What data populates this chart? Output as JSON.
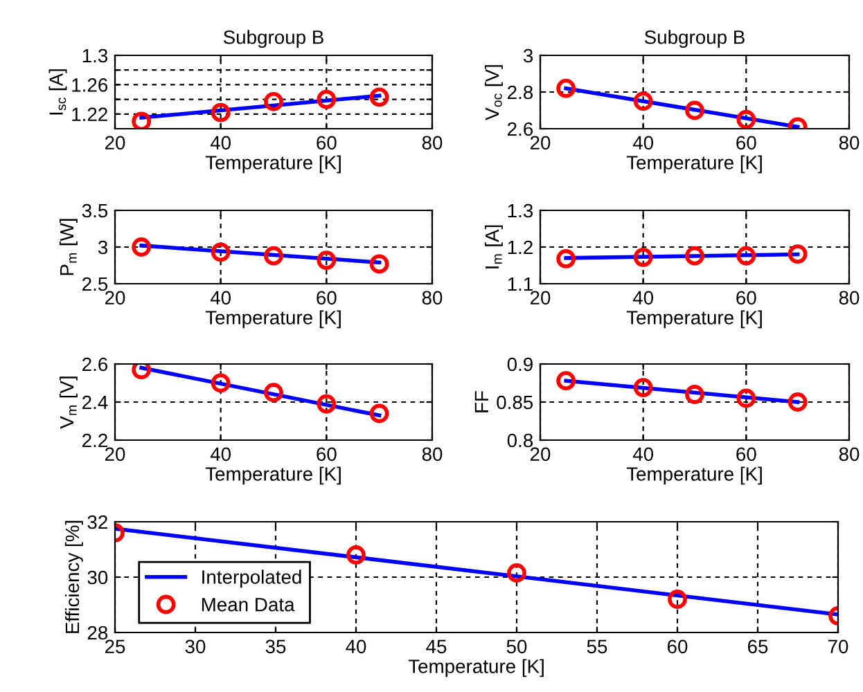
{
  "chart_data": [
    {
      "type": "line",
      "title": "Subgroup B",
      "xlabel": "Temperature [K]",
      "ylabel": "I$_{sc}$ [A]",
      "xlim": [
        20,
        80
      ],
      "xticks": [
        20,
        40,
        60,
        80
      ],
      "ylim": [
        1.2,
        1.3
      ],
      "yticks": [
        1.22,
        {
          "value": 1.24,
          "label": null
        },
        1.26,
        {
          "value": 1.28,
          "label": null
        },
        1.3
      ],
      "grid": true,
      "legend": false,
      "series": [
        {
          "color": "#0000ff",
          "x": [
            25,
            70
          ],
          "values": [
            1.215,
            1.245
          ],
          "marker": "none"
        },
        {
          "type": "scatter",
          "color": "#ff0000",
          "x": [
            25,
            40,
            50,
            60,
            70
          ],
          "values": [
            1.21,
            1.222,
            1.237,
            1.24,
            1.243
          ],
          "marker": "circle"
        }
      ]
    },
    {
      "type": "line",
      "title": "Subgroup B",
      "xlabel": "Temperature [K]",
      "ylabel": "V$_{oc}$ [V]",
      "xlim": [
        20,
        80
      ],
      "xticks": [
        20,
        40,
        60,
        80
      ],
      "ylim": [
        2.6,
        3
      ],
      "yticks": [
        2.6,
        2.8,
        3
      ],
      "grid": true,
      "legend": false,
      "series": [
        {
          "color": "#0000ff",
          "x": [
            25,
            70
          ],
          "values": [
            2.82,
            2.61
          ],
          "marker": "none"
        },
        {
          "type": "scatter",
          "color": "#ff0000",
          "x": [
            25,
            40,
            50,
            60,
            70
          ],
          "values": [
            2.82,
            2.75,
            2.7,
            2.65,
            2.61
          ],
          "marker": "circle"
        }
      ]
    },
    {
      "type": "line",
      "xlabel": "Temperature [K]",
      "ylabel": "P$_{m}$ [W]",
      "xlim": [
        20,
        80
      ],
      "xticks": [
        20,
        40,
        60,
        80
      ],
      "ylim": [
        2.5,
        3.5
      ],
      "yticks": [
        2.5,
        3,
        3.5
      ],
      "grid": true,
      "legend": false,
      "series": [
        {
          "color": "#0000ff",
          "x": [
            25,
            70
          ],
          "values": [
            3.02,
            2.79
          ],
          "marker": "none"
        },
        {
          "type": "scatter",
          "color": "#ff0000",
          "x": [
            25,
            40,
            50,
            60,
            70
          ],
          "values": [
            3.0,
            2.93,
            2.88,
            2.82,
            2.77
          ],
          "marker": "circle"
        }
      ]
    },
    {
      "type": "line",
      "xlabel": "Temperature [K]",
      "ylabel": "I$_{m}$ [A]",
      "xlim": [
        20,
        80
      ],
      "xticks": [
        20,
        40,
        60,
        80
      ],
      "ylim": [
        1.1,
        1.3
      ],
      "yticks": [
        1.1,
        1.2,
        1.3
      ],
      "grid": true,
      "legend": false,
      "series": [
        {
          "color": "#0000ff",
          "x": [
            25,
            70
          ],
          "values": [
            1.17,
            1.18
          ],
          "marker": "none"
        },
        {
          "type": "scatter",
          "color": "#ff0000",
          "x": [
            25,
            40,
            50,
            60,
            70
          ],
          "values": [
            1.168,
            1.172,
            1.176,
            1.176,
            1.181
          ],
          "marker": "circle"
        }
      ]
    },
    {
      "type": "line",
      "xlabel": "Temperature [K]",
      "ylabel": "V$_{m}$ [V]",
      "xlim": [
        20,
        80
      ],
      "xticks": [
        20,
        40,
        60,
        80
      ],
      "ylim": [
        2.2,
        2.6
      ],
      "yticks": [
        2.2,
        2.4,
        2.6
      ],
      "grid": true,
      "legend": false,
      "series": [
        {
          "color": "#0000ff",
          "x": [
            25,
            70
          ],
          "values": [
            2.58,
            2.33
          ],
          "marker": "none"
        },
        {
          "type": "scatter",
          "color": "#ff0000",
          "x": [
            25,
            40,
            50,
            60,
            70
          ],
          "values": [
            2.57,
            2.5,
            2.45,
            2.39,
            2.34
          ],
          "marker": "circle"
        }
      ]
    },
    {
      "type": "line",
      "xlabel": "Temperature [K]",
      "ylabel": "FF",
      "xlim": [
        20,
        80
      ],
      "xticks": [
        20,
        40,
        60,
        80
      ],
      "ylim": [
        0.8,
        0.9
      ],
      "yticks": [
        0.8,
        0.85,
        0.9
      ],
      "grid": true,
      "legend": false,
      "series": [
        {
          "color": "#0000ff",
          "x": [
            25,
            70
          ],
          "values": [
            0.878,
            0.85
          ],
          "marker": "none"
        },
        {
          "type": "scatter",
          "color": "#ff0000",
          "x": [
            25,
            40,
            50,
            60,
            70
          ],
          "values": [
            0.878,
            0.869,
            0.86,
            0.855,
            0.85
          ],
          "marker": "circle"
        }
      ]
    },
    {
      "type": "line",
      "xlabel": "Temperature [K]",
      "ylabel": "Efficiency [%]",
      "xlim": [
        25,
        70
      ],
      "xticks": [
        25,
        30,
        35,
        40,
        45,
        50,
        55,
        60,
        65,
        70
      ],
      "ylim": [
        28,
        32
      ],
      "yticks": [
        28,
        30,
        32
      ],
      "grid": true,
      "legend": "bottom left",
      "series": [
        {
          "name": "Interpolated",
          "color": "#0000ff",
          "x": [
            25,
            70
          ],
          "values": [
            31.75,
            28.65
          ],
          "marker": "none"
        },
        {
          "type": "scatter",
          "name": "Mean Data",
          "color": "#ff0000",
          "x": [
            25,
            40,
            50,
            60,
            70
          ],
          "values": [
            31.6,
            30.8,
            30.15,
            29.2,
            28.6
          ],
          "marker": "circle"
        }
      ]
    }
  ]
}
